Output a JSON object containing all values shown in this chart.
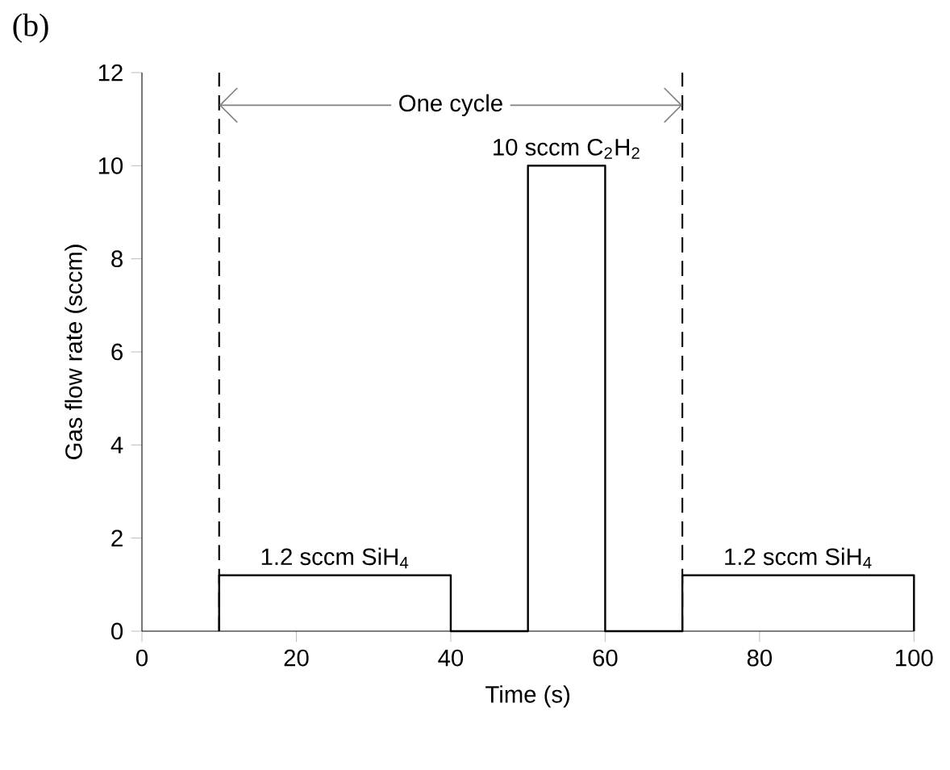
{
  "chart_data": {
    "type": "line",
    "xlabel": "Time (s)",
    "ylabel": "Gas flow rate (sccm)",
    "x": [
      10,
      10,
      40,
      40,
      50,
      50,
      60,
      60,
      70,
      70,
      100,
      100
    ],
    "series": [
      {
        "color": "#000000",
        "values": [
          0,
          1.2,
          1.2,
          0,
          0,
          10,
          10,
          0,
          0,
          1.2,
          1.2,
          0
        ]
      }
    ],
    "xlim": [
      0,
      100
    ],
    "xticks": [
      0,
      20,
      40,
      60,
      80,
      100
    ],
    "ylim": [
      0,
      12
    ],
    "yticks": [
      0,
      2,
      4,
      6,
      8,
      10,
      12
    ],
    "grid": false,
    "marker": "none",
    "line_style": "solid",
    "ref_lines": [
      {
        "axis": "x",
        "value": 10,
        "color": "#000000",
        "line_style": "dashed"
      },
      {
        "axis": "x",
        "value": 70,
        "color": "#000000",
        "line_style": "dashed"
      }
    ],
    "annotations": [
      "(b)",
      {
        "text": "One cycle",
        "x": 10,
        "y": 11.3
      },
      {
        "text": "10 sccm C$_{2}$H$_{2}$",
        "x": 55,
        "y": 10
      },
      {
        "text": "1.2 sccm SiH$_{4}$",
        "x": 25,
        "y": 1.2
      },
      {
        "text": "1.2 sccm SiH$_{4}$",
        "x": 85,
        "y": 1.2
      }
    ]
  }
}
